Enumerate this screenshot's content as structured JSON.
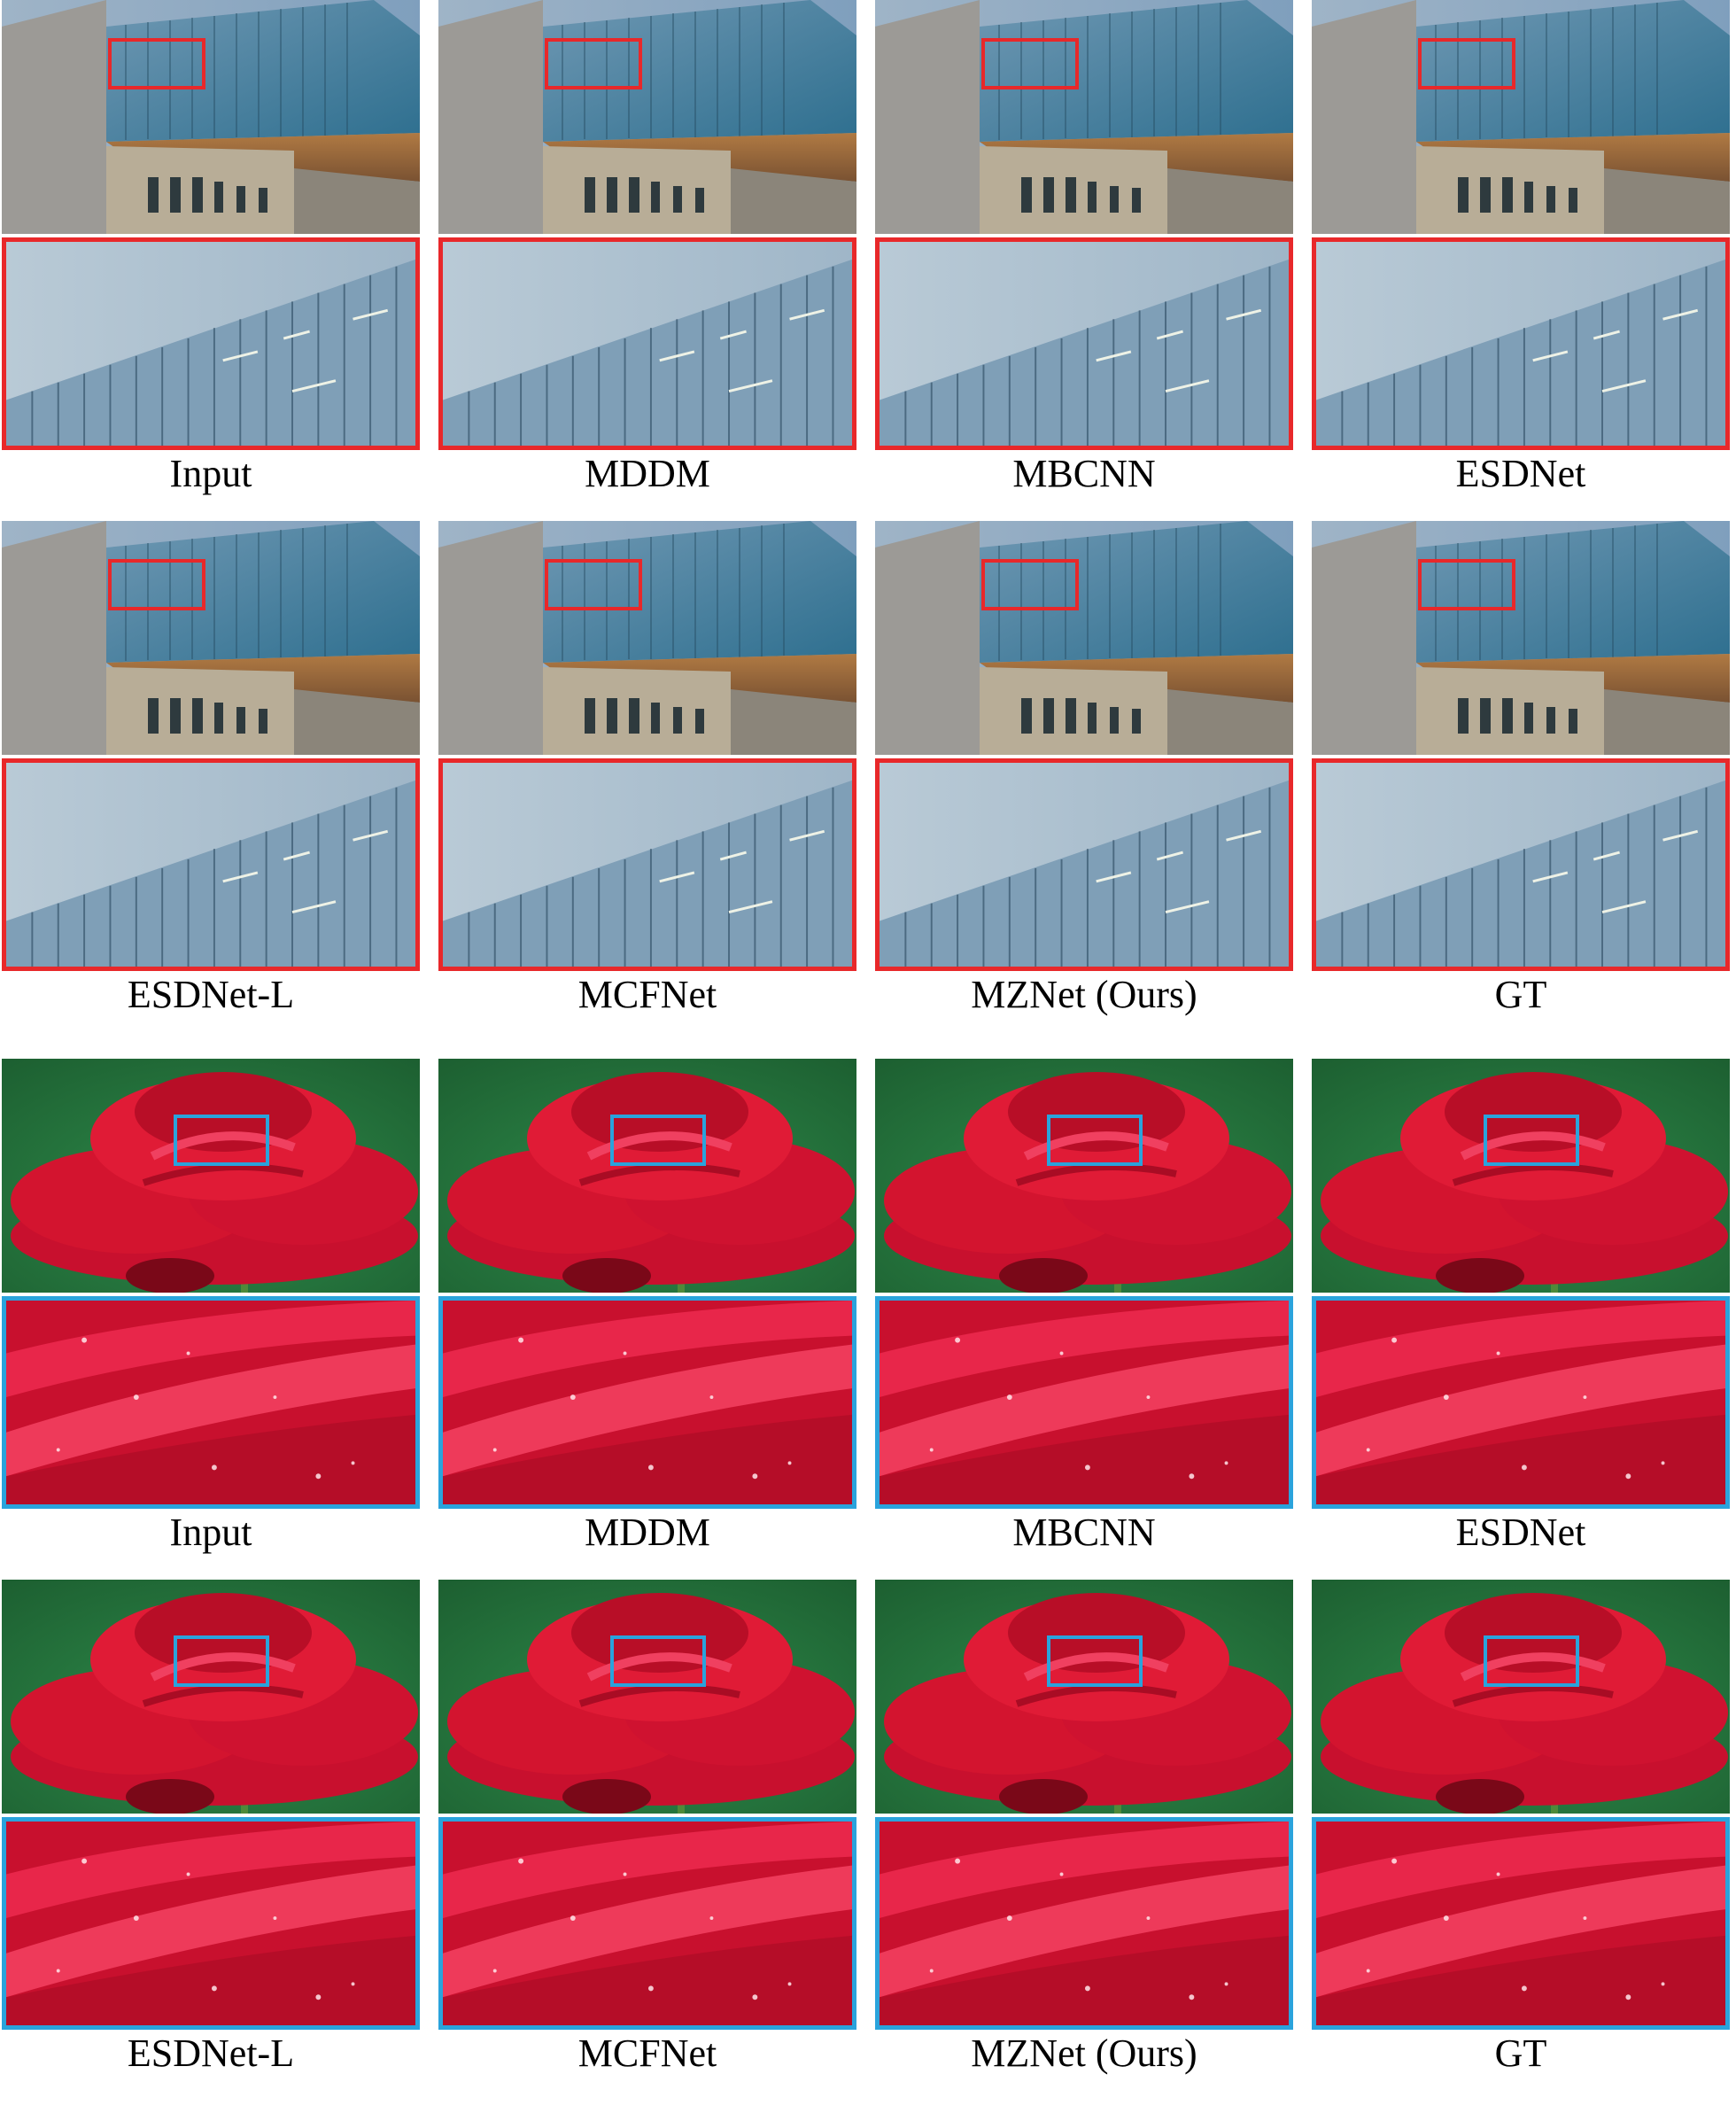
{
  "figure": {
    "colors": {
      "building_highlight": "#e8282a",
      "rose_highlight": "#2aa3dc",
      "label_text": "#000000"
    },
    "groups": [
      {
        "scene": "building",
        "rows": [
          {
            "labels": [
              "Input",
              "MDDM",
              "MBCNN",
              "ESDNet"
            ]
          },
          {
            "labels": [
              "ESDNet-L",
              "MCFNet",
              "MZNet (Ours)",
              "GT"
            ]
          }
        ]
      },
      {
        "scene": "rose",
        "rows": [
          {
            "labels": [
              "Input",
              "MDDM",
              "MBCNN",
              "ESDNet"
            ]
          },
          {
            "labels": [
              "ESDNet-L",
              "MCFNet",
              "MZNet (Ours)",
              "GT"
            ]
          }
        ]
      }
    ]
  }
}
